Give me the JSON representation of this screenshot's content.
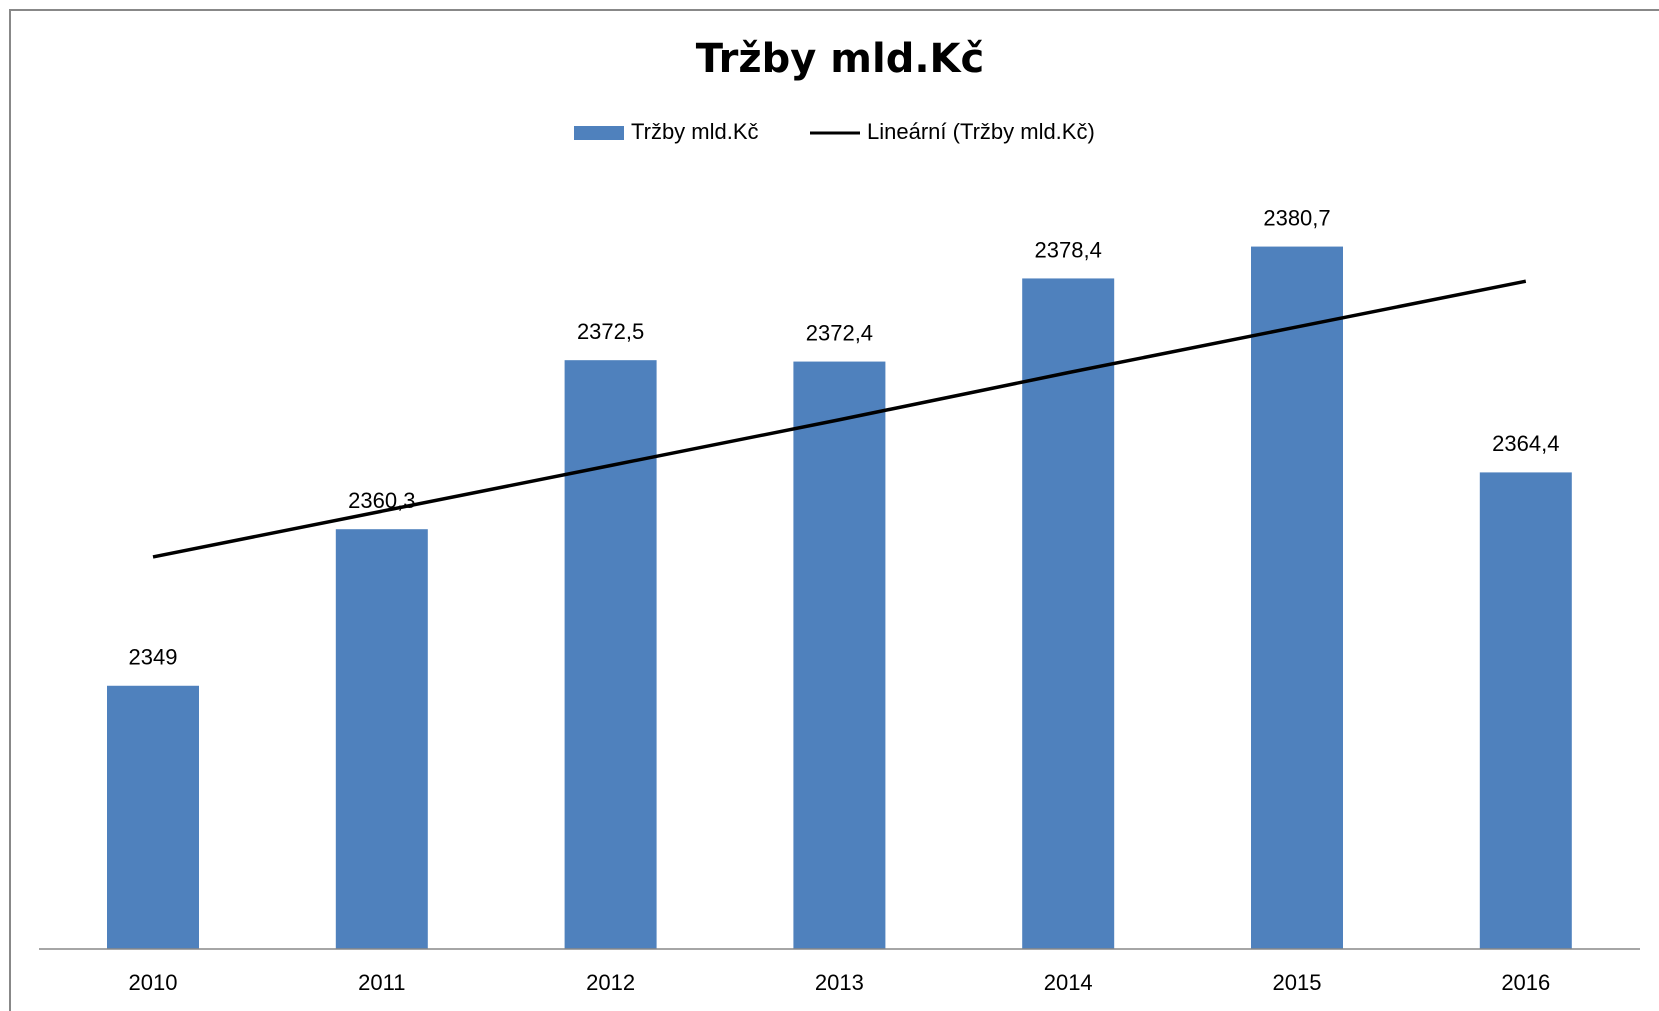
{
  "chart_data": {
    "type": "bar",
    "title": "Tržby mld.Kč",
    "categories": [
      "2010",
      "2011",
      "2012",
      "2013",
      "2014",
      "2015",
      "2016"
    ],
    "series": [
      {
        "name": "Tržby mld.Kč",
        "type": "bar",
        "color": "#4f81bd",
        "values": [
          2349,
          2360.3,
          2372.5,
          2372.4,
          2378.4,
          2380.7,
          2364.4
        ],
        "value_labels": [
          "2349",
          "2360,3",
          "2372,5",
          "2372,4",
          "2378,4",
          "2380,7",
          "2364,4"
        ]
      },
      {
        "name": "Lineární (Tržby mld.Kč)",
        "type": "line",
        "color": "#000000",
        "values": [
          2358.3,
          2361.6,
          2364.9,
          2368.2,
          2371.6,
          2374.9,
          2378.2
        ]
      }
    ],
    "ylim": [
      2330,
      2385
    ],
    "grid": false,
    "legend": "top"
  }
}
